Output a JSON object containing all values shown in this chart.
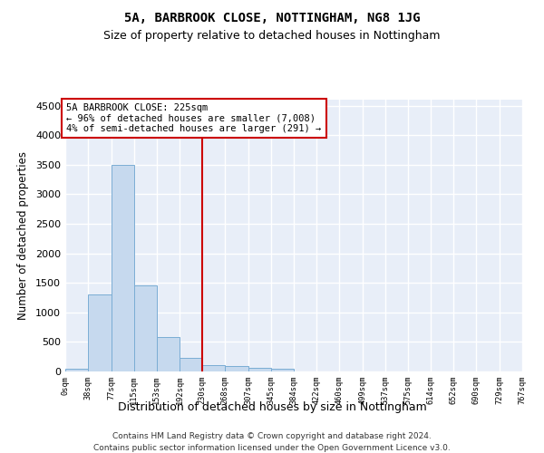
{
  "title1": "5A, BARBROOK CLOSE, NOTTINGHAM, NG8 1JG",
  "title2": "Size of property relative to detached houses in Nottingham",
  "xlabel": "Distribution of detached houses by size in Nottingham",
  "ylabel": "Number of detached properties",
  "annotation_line1": "5A BARBROOK CLOSE: 225sqm",
  "annotation_line2": "← 96% of detached houses are smaller (7,008)",
  "annotation_line3": "4% of semi-detached houses are larger (291) →",
  "bin_edges": [
    0,
    38,
    77,
    115,
    153,
    192,
    230,
    268,
    307,
    345,
    384,
    422,
    460,
    499,
    537,
    575,
    614,
    652,
    690,
    729,
    767
  ],
  "bar_values": [
    50,
    1300,
    3500,
    1460,
    590,
    230,
    115,
    85,
    65,
    45,
    0,
    5,
    0,
    0,
    0,
    0,
    0,
    0,
    0,
    0
  ],
  "bar_color": "#c6d9ee",
  "bar_edge_color": "#7aadd4",
  "vline_color": "#cc0000",
  "vline_x": 230,
  "annotation_box_edge": "#cc0000",
  "plot_bg_color": "#e8eef8",
  "grid_color": "#ffffff",
  "ylim": [
    0,
    4600
  ],
  "yticks": [
    0,
    500,
    1000,
    1500,
    2000,
    2500,
    3000,
    3500,
    4000,
    4500
  ],
  "footer1": "Contains HM Land Registry data © Crown copyright and database right 2024.",
  "footer2": "Contains public sector information licensed under the Open Government Licence v3.0."
}
